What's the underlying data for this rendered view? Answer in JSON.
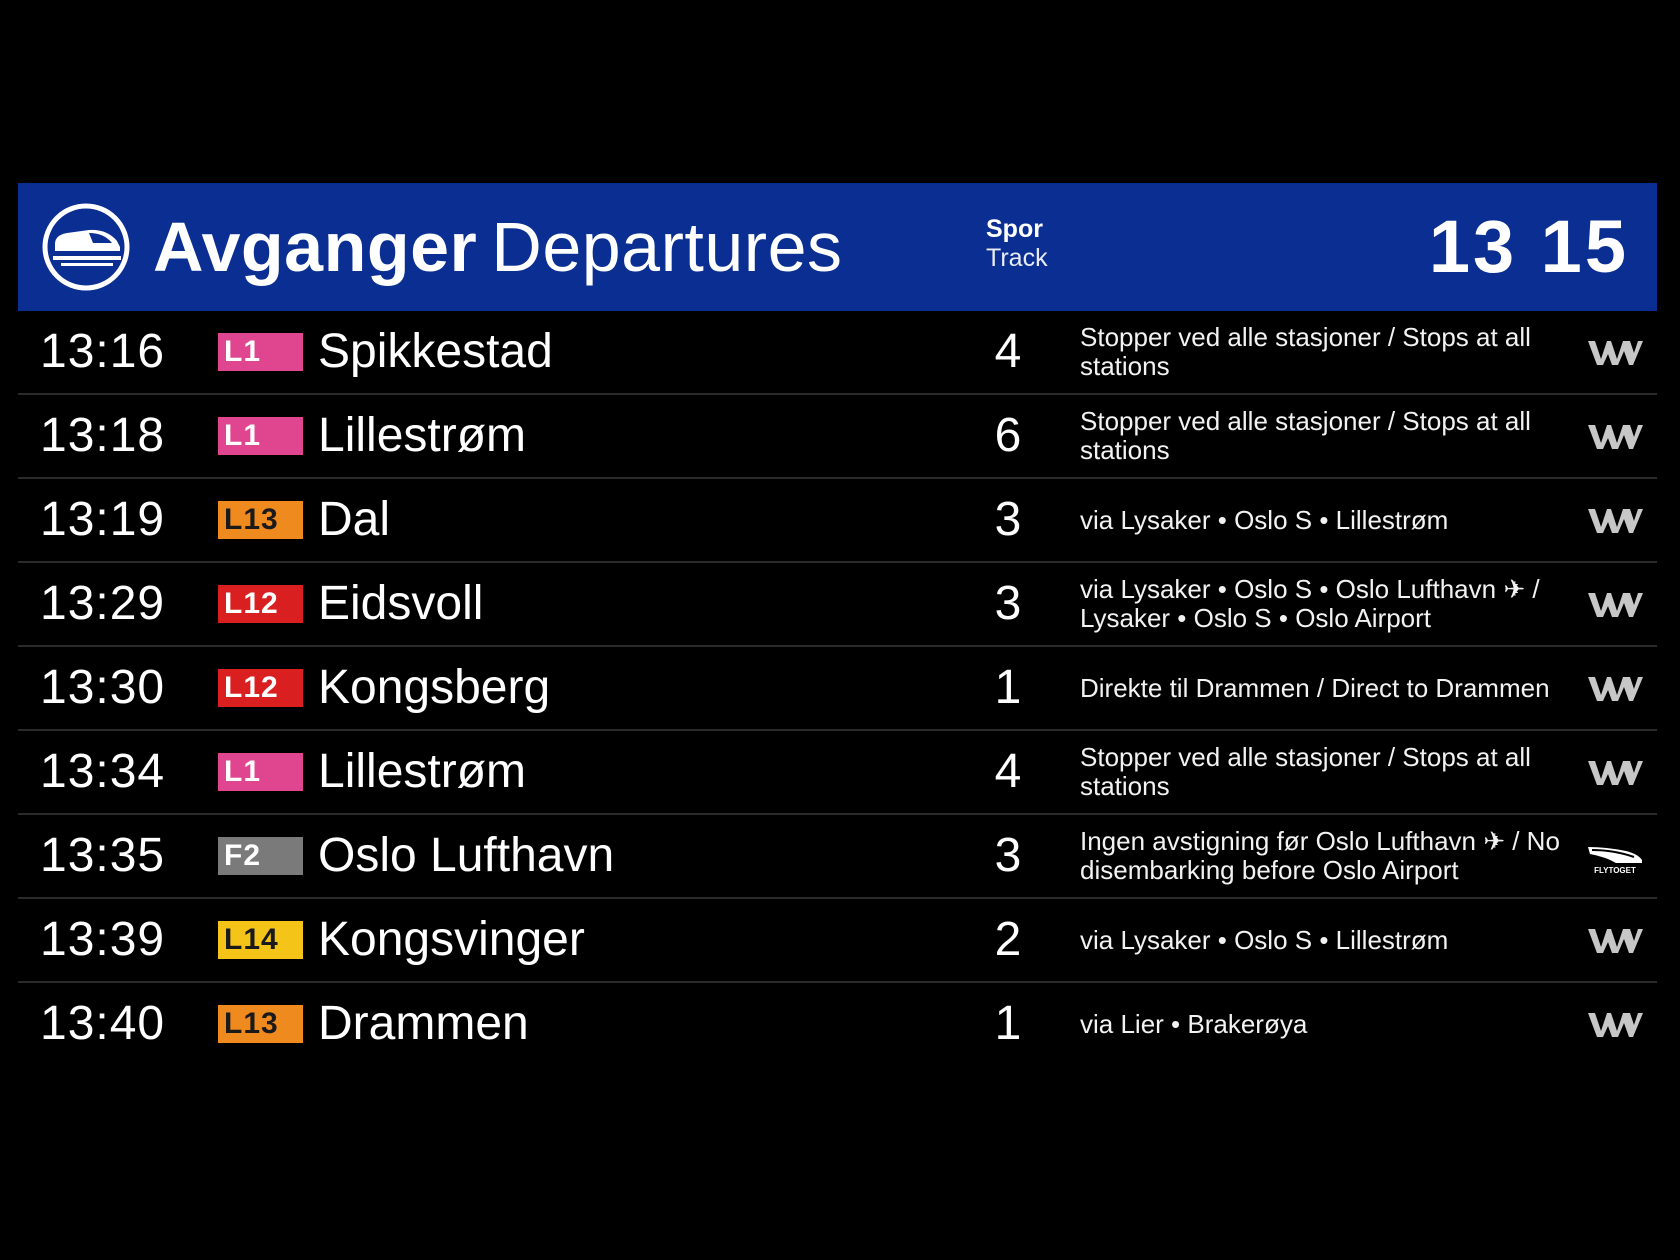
{
  "header": {
    "title_no": "Avganger",
    "title_en": "Departures",
    "track_label_no": "Spor",
    "track_label_en": "Track",
    "clock": "13 15",
    "background_color": "#0a2e91",
    "logo_icon": "train-icon"
  },
  "departures": [
    {
      "time": "13:16",
      "line": "L1",
      "line_color": "#e0458f",
      "line_text_dark": false,
      "destination": "Spikkestad",
      "track": "4",
      "note": "Stopper ved alle stasjoner / Stops at all stations",
      "operator_icon": "vy-logo-icon"
    },
    {
      "time": "13:18",
      "line": "L1",
      "line_color": "#e0458f",
      "line_text_dark": false,
      "destination": "Lillestrøm",
      "track": "6",
      "note": "Stopper ved alle stasjoner / Stops at all stations",
      "operator_icon": "vy-logo-icon"
    },
    {
      "time": "13:19",
      "line": "L13",
      "line_color": "#ef8a1f",
      "line_text_dark": true,
      "destination": "Dal",
      "track": "3",
      "note": "via Lysaker • Oslo S • Lillestrøm",
      "operator_icon": "vy-logo-icon"
    },
    {
      "time": "13:29",
      "line": "L12",
      "line_color": "#d91f1f",
      "line_text_dark": false,
      "destination": "Eidsvoll",
      "track": "3",
      "note": "via Lysaker • Oslo S • Oslo Lufthavn ✈ / Lysaker • Oslo S • Oslo Airport",
      "operator_icon": "vy-logo-icon"
    },
    {
      "time": "13:30",
      "line": "L12",
      "line_color": "#d91f1f",
      "line_text_dark": false,
      "destination": "Kongsberg",
      "track": "1",
      "note": "Direkte til Drammen / Direct to Drammen",
      "operator_icon": "vy-logo-icon"
    },
    {
      "time": "13:34",
      "line": "L1",
      "line_color": "#e0458f",
      "line_text_dark": false,
      "destination": "Lillestrøm",
      "track": "4",
      "note": "Stopper ved alle stasjoner / Stops at all stations",
      "operator_icon": "vy-logo-icon"
    },
    {
      "time": "13:35",
      "line": "F2",
      "line_color": "#7a7a7a",
      "line_text_dark": false,
      "destination": "Oslo Lufthavn",
      "track": "3",
      "note": "Ingen avstigning før Oslo Lufthavn ✈ / No disembarking before Oslo Airport",
      "operator_icon": "flytoget-logo-icon",
      "operator_text": "FLYTOGET"
    },
    {
      "time": "13:39",
      "line": "L14",
      "line_color": "#f5c418",
      "line_text_dark": true,
      "destination": "Kongsvinger",
      "track": "2",
      "note": "via Lysaker • Oslo S • Lillestrøm",
      "operator_icon": "vy-logo-icon"
    },
    {
      "time": "13:40",
      "line": "L13",
      "line_color": "#ef8a1f",
      "line_text_dark": true,
      "destination": "Drammen",
      "track": "1",
      "note": "via Lier • Brakerøya",
      "operator_icon": "vy-logo-icon"
    }
  ]
}
